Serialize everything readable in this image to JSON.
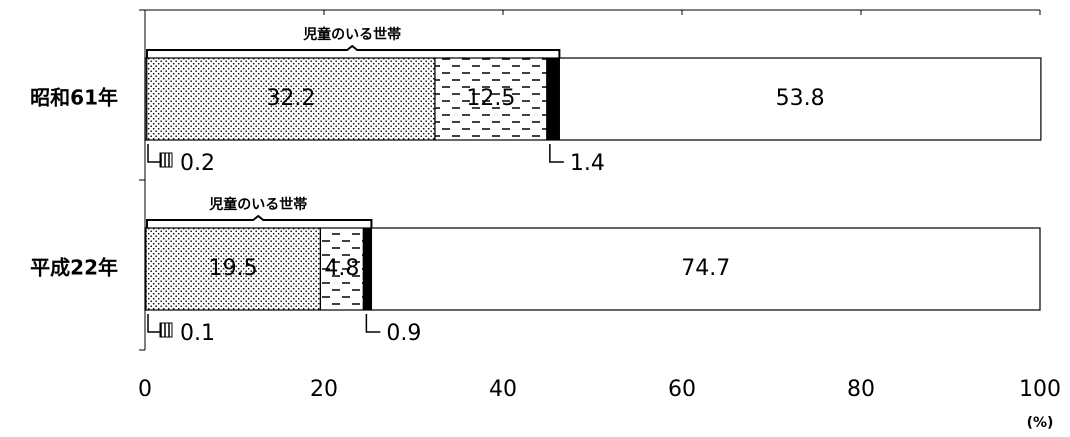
{
  "chart_data": {
    "type": "stacked_barh",
    "categories": [
      "昭和61年",
      "平成22年"
    ],
    "series": [
      {
        "color": "#000000",
        "pattern": "vlines",
        "values": [
          0.2,
          0.1
        ]
      },
      {
        "color": "#000000",
        "pattern": "dots",
        "values": [
          32.2,
          19.5
        ]
      },
      {
        "color": "#000000",
        "pattern": "dashes",
        "values": [
          12.5,
          4.8
        ]
      },
      {
        "color": "#000000",
        "pattern": "solid",
        "values": [
          1.4,
          0.9
        ]
      },
      {
        "color": "#000000",
        "pattern": "none",
        "values": [
          53.8,
          74.7
        ]
      }
    ],
    "annotations": [
      "児童のいる世帯",
      "児童のいる世帯"
    ],
    "xlabel": "(%)",
    "xlim": [
      0,
      100
    ],
    "xticks": [
      0,
      20,
      40,
      60,
      80,
      100
    ]
  }
}
